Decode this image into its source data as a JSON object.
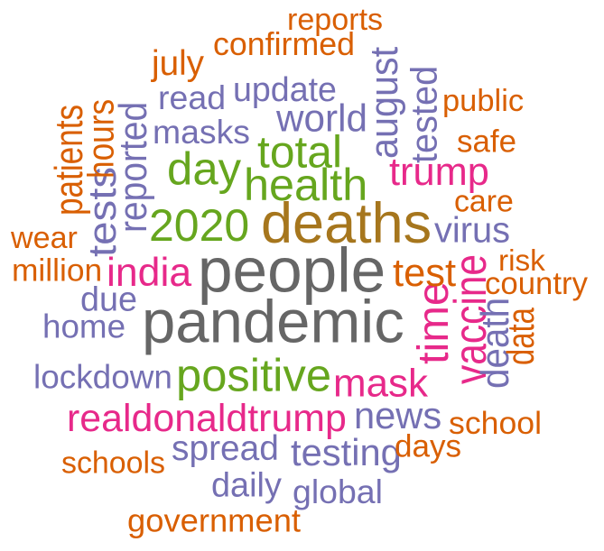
{
  "colors": {
    "gray": "#666666",
    "gold": "#a6761d",
    "green": "#66a61e",
    "magenta": "#e7298a",
    "purple": "#7570b3",
    "orange": "#d95f02"
  },
  "words": [
    {
      "id": "people",
      "text": "people",
      "color": "gray"
    },
    {
      "id": "pandemic",
      "text": "pandemic",
      "color": "gray"
    },
    {
      "id": "deaths",
      "text": "deaths",
      "color": "gold"
    },
    {
      "id": "health",
      "text": "health",
      "color": "green"
    },
    {
      "id": "total",
      "text": "total",
      "color": "green"
    },
    {
      "id": "day",
      "text": "day",
      "color": "green"
    },
    {
      "id": "2020",
      "text": "2020",
      "color": "green"
    },
    {
      "id": "positive",
      "text": "positive",
      "color": "green"
    },
    {
      "id": "india",
      "text": "india",
      "color": "magenta"
    },
    {
      "id": "trump",
      "text": "trump",
      "color": "magenta"
    },
    {
      "id": "time",
      "text": "time",
      "color": "magenta"
    },
    {
      "id": "vaccine",
      "text": "vaccine",
      "color": "magenta"
    },
    {
      "id": "mask",
      "text": "mask",
      "color": "magenta"
    },
    {
      "id": "realdonaldtrump",
      "text": "realdonaldtrump",
      "color": "magenta"
    },
    {
      "id": "world",
      "text": "world",
      "color": "purple"
    },
    {
      "id": "update",
      "text": "update",
      "color": "purple"
    },
    {
      "id": "read",
      "text": "read",
      "color": "purple"
    },
    {
      "id": "masks",
      "text": "masks",
      "color": "purple"
    },
    {
      "id": "august",
      "text": "august",
      "color": "purple"
    },
    {
      "id": "tested",
      "text": "tested",
      "color": "purple"
    },
    {
      "id": "reported",
      "text": "reported",
      "color": "purple"
    },
    {
      "id": "tests",
      "text": "tests",
      "color": "purple"
    },
    {
      "id": "virus",
      "text": "virus",
      "color": "purple"
    },
    {
      "id": "due",
      "text": "due",
      "color": "purple"
    },
    {
      "id": "home",
      "text": "home",
      "color": "purple"
    },
    {
      "id": "death",
      "text": "death",
      "color": "purple"
    },
    {
      "id": "lockdown",
      "text": "lockdown",
      "color": "purple"
    },
    {
      "id": "news",
      "text": "news",
      "color": "purple"
    },
    {
      "id": "spread",
      "text": "spread",
      "color": "purple"
    },
    {
      "id": "testing",
      "text": "testing",
      "color": "purple"
    },
    {
      "id": "daily",
      "text": "daily",
      "color": "purple"
    },
    {
      "id": "global",
      "text": "global",
      "color": "purple"
    },
    {
      "id": "reports",
      "text": "reports",
      "color": "orange"
    },
    {
      "id": "confirmed",
      "text": "confirmed",
      "color": "orange"
    },
    {
      "id": "july",
      "text": "july",
      "color": "orange"
    },
    {
      "id": "public",
      "text": "public",
      "color": "orange"
    },
    {
      "id": "safe",
      "text": "safe",
      "color": "orange"
    },
    {
      "id": "patients",
      "text": "patients",
      "color": "orange"
    },
    {
      "id": "hours",
      "text": "hours",
      "color": "orange"
    },
    {
      "id": "care",
      "text": "care",
      "color": "orange"
    },
    {
      "id": "wear",
      "text": "wear",
      "color": "orange"
    },
    {
      "id": "million",
      "text": "million",
      "color": "orange"
    },
    {
      "id": "test",
      "text": "test",
      "color": "orange"
    },
    {
      "id": "risk",
      "text": "risk",
      "color": "orange"
    },
    {
      "id": "country",
      "text": "country",
      "color": "orange"
    },
    {
      "id": "data",
      "text": "data",
      "color": "orange"
    },
    {
      "id": "school",
      "text": "school",
      "color": "orange"
    },
    {
      "id": "days",
      "text": "days",
      "color": "orange"
    },
    {
      "id": "schools",
      "text": "schools",
      "color": "orange"
    },
    {
      "id": "government",
      "text": "government",
      "color": "orange"
    }
  ]
}
